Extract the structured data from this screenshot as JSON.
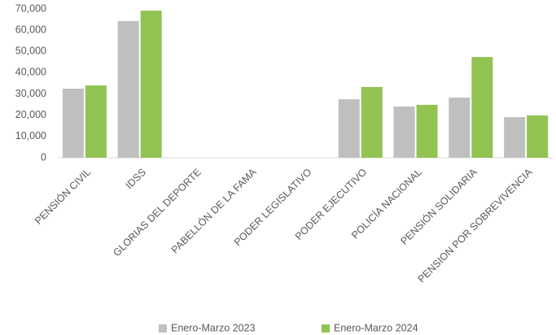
{
  "chart_data": {
    "type": "bar",
    "categories": [
      "PENSIÓN CIVIL",
      "IDSS",
      "GLORIAS DEL DEPORTE",
      "PABELLÓN DE LA FAMA",
      "PODER LEGISLATIVO",
      "PODER EJECUTIVO",
      "POLICÍA NACIONAL",
      "PENSIÓN SOLIDARIA",
      "PENSION POR SOBREVIVENCIA"
    ],
    "series": [
      {
        "name": "Enero-Marzo 2023",
        "color": "#bfbfbf",
        "values": [
          32500,
          64300,
          0,
          0,
          0,
          27500,
          24100,
          28300,
          19100
        ]
      },
      {
        "name": "Enero-Marzo 2024",
        "color": "#92c353",
        "values": [
          34000,
          69200,
          0,
          0,
          0,
          33300,
          24900,
          47400,
          19900
        ]
      }
    ],
    "ylim": [
      0,
      70000
    ],
    "yticks": [
      0,
      {
        "value": 10000,
        "label": "10,000"
      },
      {
        "value": 20000,
        "label": "20,000"
      },
      {
        "value": 30000,
        "label": "30,000"
      },
      {
        "value": 40000,
        "label": "40,000"
      },
      {
        "value": 50000,
        "label": "50,000"
      },
      {
        "value": 60000,
        "label": "60,000"
      },
      {
        "value": 70000,
        "label": "70,000"
      }
    ],
    "grid": false,
    "legend": "bottom"
  }
}
